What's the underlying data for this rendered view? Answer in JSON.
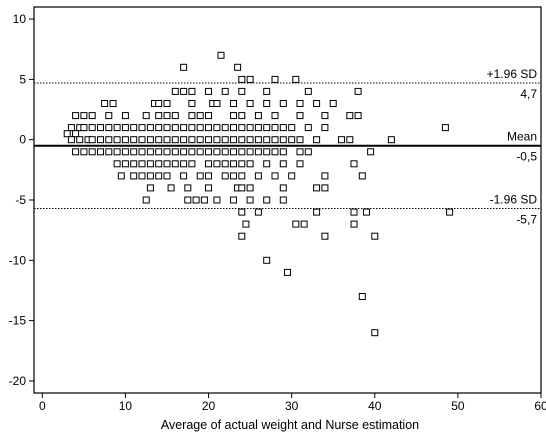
{
  "chart_data": {
    "type": "scatter",
    "title": "",
    "xlabel": "Average of actual weight and Nurse estimation",
    "ylabel": "",
    "xlim": [
      -1,
      60
    ],
    "ylim": [
      -21,
      11
    ],
    "xticks": [
      0,
      10,
      20,
      30,
      40,
      50,
      60
    ],
    "yticks": [
      10,
      5,
      0,
      -5,
      -10,
      -15,
      -20
    ],
    "marker": "open-square",
    "grid": false,
    "reference_lines": [
      {
        "name": "upper",
        "label": "+1.96 SD",
        "value_label": "4,7",
        "value": 4.7,
        "style": "dotted"
      },
      {
        "name": "mean",
        "label": "Mean",
        "value_label": "-0,5",
        "value": -0.5,
        "style": "solid"
      },
      {
        "name": "lower",
        "label": "-1.96 SD",
        "value_label": "-5,7",
        "value": -5.7,
        "style": "dotted"
      }
    ],
    "points": [
      [
        21.5,
        7
      ],
      [
        17,
        6
      ],
      [
        23.5,
        6
      ],
      [
        24,
        5
      ],
      [
        25,
        5
      ],
      [
        28,
        5
      ],
      [
        30.5,
        5
      ],
      [
        16,
        4
      ],
      [
        17,
        4
      ],
      [
        18,
        4
      ],
      [
        20,
        4
      ],
      [
        22,
        4
      ],
      [
        24,
        4
      ],
      [
        27,
        4
      ],
      [
        32,
        4
      ],
      [
        38,
        4
      ],
      [
        7.5,
        3
      ],
      [
        8.5,
        3
      ],
      [
        13.5,
        3
      ],
      [
        14,
        3
      ],
      [
        15,
        3
      ],
      [
        18,
        3
      ],
      [
        20.5,
        3
      ],
      [
        21,
        3
      ],
      [
        23,
        3
      ],
      [
        25,
        3
      ],
      [
        27,
        3
      ],
      [
        29,
        3
      ],
      [
        31,
        3
      ],
      [
        33,
        3
      ],
      [
        35,
        3
      ],
      [
        4,
        2
      ],
      [
        5,
        2
      ],
      [
        6,
        2
      ],
      [
        8,
        2
      ],
      [
        10,
        2
      ],
      [
        12.5,
        2
      ],
      [
        14,
        2
      ],
      [
        15,
        2
      ],
      [
        16,
        2
      ],
      [
        18,
        2
      ],
      [
        19,
        2
      ],
      [
        20,
        2
      ],
      [
        23,
        2
      ],
      [
        24,
        2
      ],
      [
        26,
        2
      ],
      [
        28,
        2
      ],
      [
        31,
        2
      ],
      [
        34,
        2
      ],
      [
        37,
        2
      ],
      [
        38,
        2
      ],
      [
        3.5,
        1
      ],
      [
        4.5,
        1
      ],
      [
        5,
        1
      ],
      [
        6,
        1
      ],
      [
        7,
        1
      ],
      [
        8,
        1
      ],
      [
        9,
        1
      ],
      [
        10,
        1
      ],
      [
        11,
        1
      ],
      [
        12,
        1
      ],
      [
        13,
        1
      ],
      [
        14,
        1
      ],
      [
        15,
        1
      ],
      [
        16,
        1
      ],
      [
        17,
        1
      ],
      [
        18,
        1
      ],
      [
        19,
        1
      ],
      [
        20,
        1
      ],
      [
        21,
        1
      ],
      [
        22,
        1
      ],
      [
        23,
        1
      ],
      [
        24,
        1
      ],
      [
        25,
        1
      ],
      [
        26,
        1
      ],
      [
        27,
        1
      ],
      [
        28,
        1
      ],
      [
        29,
        1
      ],
      [
        30,
        1
      ],
      [
        32,
        1
      ],
      [
        34,
        1
      ],
      [
        48.5,
        1
      ],
      [
        3,
        0.5
      ],
      [
        4,
        0.5
      ],
      [
        3.5,
        0
      ],
      [
        4.5,
        0
      ],
      [
        5.5,
        0
      ],
      [
        6,
        0
      ],
      [
        7,
        0
      ],
      [
        8,
        0
      ],
      [
        9,
        0
      ],
      [
        10,
        0
      ],
      [
        11,
        0
      ],
      [
        12,
        0
      ],
      [
        13,
        0
      ],
      [
        14,
        0
      ],
      [
        15,
        0
      ],
      [
        16,
        0
      ],
      [
        17,
        0
      ],
      [
        18,
        0
      ],
      [
        19,
        0
      ],
      [
        20,
        0
      ],
      [
        21,
        0
      ],
      [
        22,
        0
      ],
      [
        23,
        0
      ],
      [
        24,
        0
      ],
      [
        25,
        0
      ],
      [
        26,
        0
      ],
      [
        27,
        0
      ],
      [
        28,
        0
      ],
      [
        29,
        0
      ],
      [
        30,
        0
      ],
      [
        31,
        0
      ],
      [
        33,
        0
      ],
      [
        36,
        0
      ],
      [
        37,
        0
      ],
      [
        42,
        0
      ],
      [
        4,
        -1
      ],
      [
        5,
        -1
      ],
      [
        6,
        -1
      ],
      [
        7,
        -1
      ],
      [
        8,
        -1
      ],
      [
        9,
        -1
      ],
      [
        10,
        -1
      ],
      [
        11,
        -1
      ],
      [
        12,
        -1
      ],
      [
        13,
        -1
      ],
      [
        14,
        -1
      ],
      [
        15,
        -1
      ],
      [
        16,
        -1
      ],
      [
        17,
        -1
      ],
      [
        18,
        -1
      ],
      [
        19,
        -1
      ],
      [
        20,
        -1
      ],
      [
        21,
        -1
      ],
      [
        22,
        -1
      ],
      [
        23,
        -1
      ],
      [
        24,
        -1
      ],
      [
        25,
        -1
      ],
      [
        26,
        -1
      ],
      [
        27,
        -1
      ],
      [
        28,
        -1
      ],
      [
        29,
        -1
      ],
      [
        31,
        -1
      ],
      [
        32,
        -1
      ],
      [
        39.5,
        -1
      ],
      [
        9,
        -2
      ],
      [
        10,
        -2
      ],
      [
        11,
        -2
      ],
      [
        12,
        -2
      ],
      [
        13,
        -2
      ],
      [
        14,
        -2
      ],
      [
        15,
        -2
      ],
      [
        16,
        -2
      ],
      [
        17,
        -2
      ],
      [
        18,
        -2
      ],
      [
        20,
        -2
      ],
      [
        21,
        -2
      ],
      [
        22,
        -2
      ],
      [
        23,
        -2
      ],
      [
        24,
        -2
      ],
      [
        25,
        -2
      ],
      [
        27,
        -2
      ],
      [
        29,
        -2
      ],
      [
        31,
        -2
      ],
      [
        37.5,
        -2
      ],
      [
        9.5,
        -3
      ],
      [
        11,
        -3
      ],
      [
        12,
        -3
      ],
      [
        13,
        -3
      ],
      [
        14,
        -3
      ],
      [
        15,
        -3
      ],
      [
        17,
        -3
      ],
      [
        19,
        -3
      ],
      [
        20,
        -3
      ],
      [
        22,
        -3
      ],
      [
        23,
        -3
      ],
      [
        24,
        -3
      ],
      [
        26,
        -3
      ],
      [
        28,
        -3
      ],
      [
        30,
        -3
      ],
      [
        34,
        -3
      ],
      [
        38.5,
        -3
      ],
      [
        13,
        -4
      ],
      [
        15.5,
        -4
      ],
      [
        17.5,
        -4
      ],
      [
        20,
        -4
      ],
      [
        23.5,
        -4
      ],
      [
        24,
        -4
      ],
      [
        25,
        -4
      ],
      [
        29,
        -4
      ],
      [
        33,
        -4
      ],
      [
        34,
        -4
      ],
      [
        12.5,
        -5
      ],
      [
        17.5,
        -5
      ],
      [
        18.5,
        -5
      ],
      [
        19.5,
        -5
      ],
      [
        21,
        -5
      ],
      [
        23,
        -5
      ],
      [
        25,
        -5
      ],
      [
        27,
        -5
      ],
      [
        29,
        -5
      ],
      [
        24,
        -6
      ],
      [
        26,
        -6
      ],
      [
        33,
        -6
      ],
      [
        37.5,
        -6
      ],
      [
        39,
        -6
      ],
      [
        49,
        -6
      ],
      [
        24.5,
        -7
      ],
      [
        30.5,
        -7
      ],
      [
        31.5,
        -7
      ],
      [
        37.5,
        -7
      ],
      [
        24,
        -8
      ],
      [
        34,
        -8
      ],
      [
        40,
        -8
      ],
      [
        27,
        -10
      ],
      [
        29.5,
        -11
      ],
      [
        38.5,
        -13
      ],
      [
        40,
        -16
      ]
    ]
  }
}
